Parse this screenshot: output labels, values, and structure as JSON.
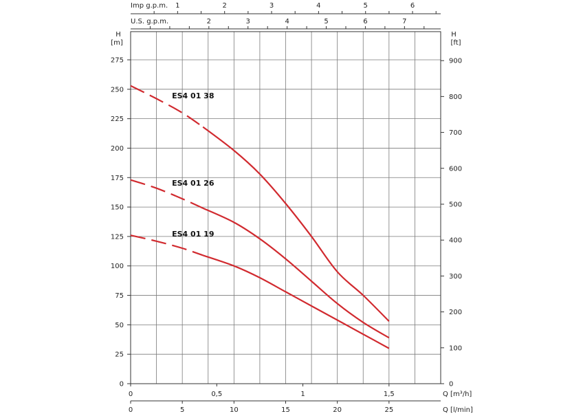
{
  "chart_data": {
    "type": "line",
    "title": "",
    "left_axis": {
      "label_top": "H",
      "label_unit": "[m]",
      "range": [
        0,
        275
      ],
      "ticks": [
        0,
        25,
        50,
        75,
        100,
        125,
        150,
        175,
        200,
        225,
        250,
        275
      ]
    },
    "right_axis": {
      "label_top": "H",
      "label_unit": "[ft]",
      "range": [
        0,
        902
      ],
      "ticks": [
        0,
        100,
        200,
        300,
        400,
        500,
        600,
        700,
        800,
        900
      ]
    },
    "x_axis_m3h": {
      "label": "Q [m³/h]",
      "range": [
        0,
        1.8
      ],
      "ticks": [
        0,
        0.5,
        1,
        1.5
      ],
      "tick_labels": [
        "0",
        "0,5",
        "1",
        "1,5"
      ]
    },
    "x_axis_lmin": {
      "label": "Q [l/min]",
      "range": [
        0,
        30
      ],
      "ticks": [
        0,
        5,
        10,
        15,
        20,
        25
      ],
      "tick_labels": [
        "0",
        "5",
        "10",
        "15",
        "20",
        "25"
      ]
    },
    "top_axis_us": {
      "label": "U.S. g.p.m.",
      "ticks": [
        2,
        3,
        4,
        5,
        6,
        7
      ],
      "tick_labels": [
        "2",
        "3",
        "4",
        "5",
        "6",
        "7"
      ]
    },
    "top_axis_imp": {
      "label": "Imp g.p.m.",
      "ticks": [
        1,
        2,
        3,
        4,
        5,
        6
      ],
      "tick_labels": [
        "1",
        "2",
        "3",
        "4",
        "5",
        "6"
      ]
    },
    "grid": true,
    "series": [
      {
        "name": "ES4 01 38",
        "color": "#d12a2f",
        "dashed_until_lmin": 7,
        "x": [
          0,
          2.5,
          5,
          7,
          10,
          12.5,
          15,
          17.5,
          20,
          22.5,
          25
        ],
        "y": [
          253,
          242,
          230,
          218,
          198,
          178,
          153,
          125,
          95,
          75,
          53
        ]
      },
      {
        "name": "ES4 01 26",
        "color": "#d12a2f",
        "dashed_until_lmin": 7,
        "x": [
          0,
          2.5,
          5,
          7,
          10,
          12.5,
          15,
          17.5,
          20,
          22.5,
          25
        ],
        "y": [
          173,
          166,
          157,
          149,
          137,
          123,
          106,
          87,
          68,
          52,
          39
        ]
      },
      {
        "name": "ES4 01 19",
        "color": "#d12a2f",
        "dashed_until_lmin": 7,
        "x": [
          0,
          2.5,
          5,
          7,
          10,
          12.5,
          15,
          17.5,
          20,
          22.5,
          25
        ],
        "y": [
          126,
          121,
          115,
          109,
          100,
          90,
          78,
          66,
          54,
          42,
          30
        ]
      }
    ]
  }
}
